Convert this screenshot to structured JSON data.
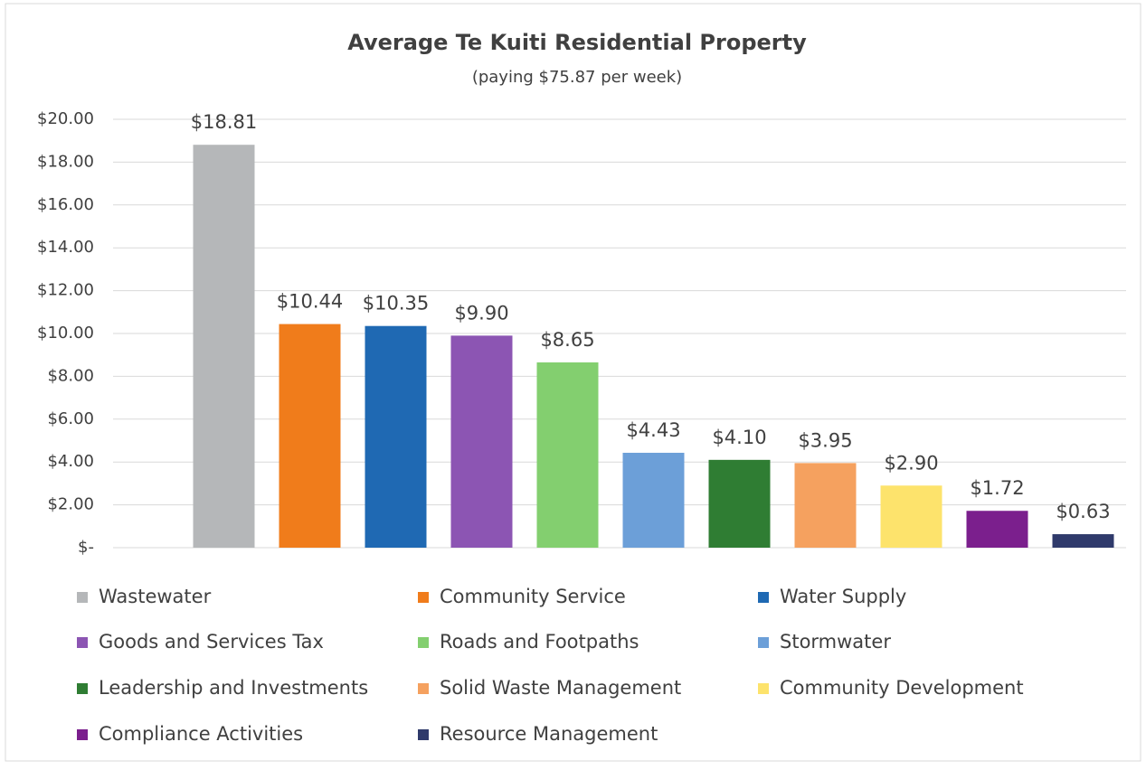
{
  "chart_data": {
    "type": "bar",
    "title": "Average Te Kuiti Residential Property",
    "subtitle": "(paying $75.87 per week)",
    "ylim": [
      0,
      20
    ],
    "yticks": [
      {
        "value": 0,
        "label": "$-"
      },
      {
        "value": 2,
        "label": "$2.00"
      },
      {
        "value": 4,
        "label": "$4.00"
      },
      {
        "value": 6,
        "label": "$6.00"
      },
      {
        "value": 8,
        "label": "$8.00"
      },
      {
        "value": 10,
        "label": "$10.00"
      },
      {
        "value": 12,
        "label": "$12.00"
      },
      {
        "value": 14,
        "label": "$14.00"
      },
      {
        "value": 16,
        "label": "$16.00"
      },
      {
        "value": 18,
        "label": "$18.00"
      },
      {
        "value": 20,
        "label": "$20.00"
      }
    ],
    "grid": true,
    "legend": "bottom",
    "series": [
      {
        "name": "Wastewater",
        "color": "#b5b7b9",
        "values": [
          18.81
        ],
        "value_labels": [
          "$18.81"
        ]
      },
      {
        "name": "Community Service",
        "color": "#f07c1b",
        "values": [
          10.44
        ],
        "value_labels": [
          "$10.44"
        ]
      },
      {
        "name": "Water Supply",
        "color": "#1f69b3",
        "values": [
          10.35
        ],
        "value_labels": [
          "$10.35"
        ]
      },
      {
        "name": "Goods and Services Tax",
        "color": "#8c55b3",
        "values": [
          9.9
        ],
        "value_labels": [
          "$9.90"
        ]
      },
      {
        "name": "Roads and Footpaths",
        "color": "#83cf6f",
        "values": [
          8.65
        ],
        "value_labels": [
          "$8.65"
        ]
      },
      {
        "name": "Stormwater",
        "color": "#6c9fd8",
        "values": [
          4.43
        ],
        "value_labels": [
          "$4.43"
        ]
      },
      {
        "name": "Leadership and Investments",
        "color": "#2f7d33",
        "values": [
          4.1
        ],
        "value_labels": [
          "$4.10"
        ]
      },
      {
        "name": "Solid Waste Management",
        "color": "#f5a15f",
        "values": [
          3.95
        ],
        "value_labels": [
          "$3.95"
        ]
      },
      {
        "name": "Community Development",
        "color": "#fde36c",
        "values": [
          2.9
        ],
        "value_labels": [
          "$2.90"
        ]
      },
      {
        "name": "Compliance Activities",
        "color": "#7b1f8d",
        "values": [
          1.72
        ],
        "value_labels": [
          "$1.72"
        ]
      },
      {
        "name": "Resource Management",
        "color": "#2f3a6b",
        "values": [
          0.63
        ],
        "value_labels": [
          "$0.63"
        ]
      }
    ]
  }
}
